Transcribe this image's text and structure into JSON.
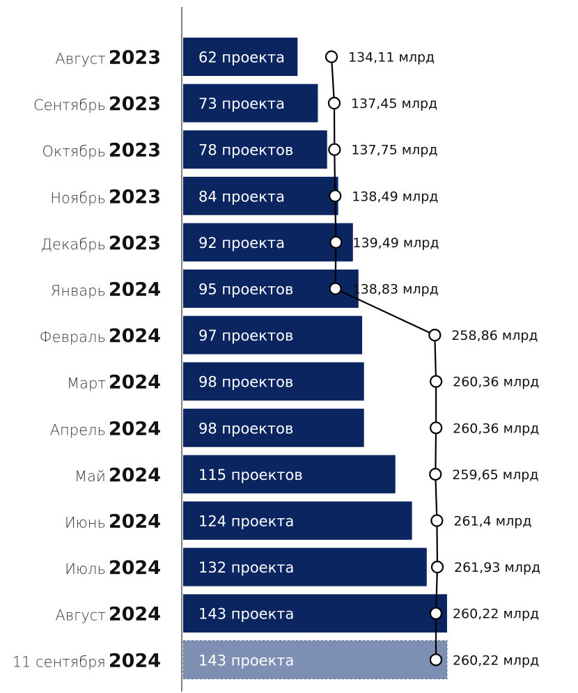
{
  "chart_data": {
    "type": "bar",
    "orientation": "horizontal",
    "categories": [
      {
        "month": "Август",
        "year": "2023"
      },
      {
        "month": "Сентябрь",
        "year": "2023"
      },
      {
        "month": "Октябрь",
        "year": "2023"
      },
      {
        "month": "Ноябрь",
        "year": "2023"
      },
      {
        "month": "Декабрь",
        "year": "2023"
      },
      {
        "month": "Январь",
        "year": "2024"
      },
      {
        "month": "Февраль",
        "year": "2024"
      },
      {
        "month": "Март",
        "year": "2024"
      },
      {
        "month": "Апрель",
        "year": "2024"
      },
      {
        "month": "Май",
        "year": "2024"
      },
      {
        "month": "Июнь",
        "year": "2024"
      },
      {
        "month": "Июль",
        "year": "2024"
      },
      {
        "month": "Август",
        "year": "2024"
      },
      {
        "month": "11 сентября",
        "year": "2024"
      }
    ],
    "series": [
      {
        "kind": "bar",
        "values": [
          62,
          73,
          78,
          84,
          92,
          95,
          97,
          98,
          98,
          115,
          124,
          132,
          143,
          143
        ],
        "labels": [
          "62 проекта",
          "73 проекта",
          "78 проектов",
          "84 проекта",
          "92 проекта",
          "95 проектов",
          "97 проектов",
          "98 проектов",
          "98 проектов",
          "115 проектов",
          "124 проекта",
          "132 проекта",
          "143 проекта",
          "143 проекта"
        ]
      },
      {
        "kind": "line",
        "values": [
          134.11,
          137.45,
          137.75,
          138.49,
          139.49,
          138.83,
          258.86,
          260.36,
          260.36,
          259.65,
          261.4,
          261.93,
          260.22,
          260.22
        ],
        "labels": [
          "134,11 млрд",
          "137,45  млрд",
          "137,75 млрд",
          "138,49 млрд",
          "139,49 млрд",
          "138,83 млрд",
          "258,86 млрд",
          "260,36 млрд",
          "260,36 млрд",
          "259,65 млрд",
          "261,4 млрд",
          "261,93 млрд",
          "260,22 млрд",
          "260,22 млрд"
        ]
      }
    ],
    "grid": false,
    "legend": "none",
    "colors": {
      "bar": "#0b2560",
      "bar_highlight": "#7d8fb3",
      "line": "#000000",
      "marker_fill": "#ffffff"
    }
  }
}
